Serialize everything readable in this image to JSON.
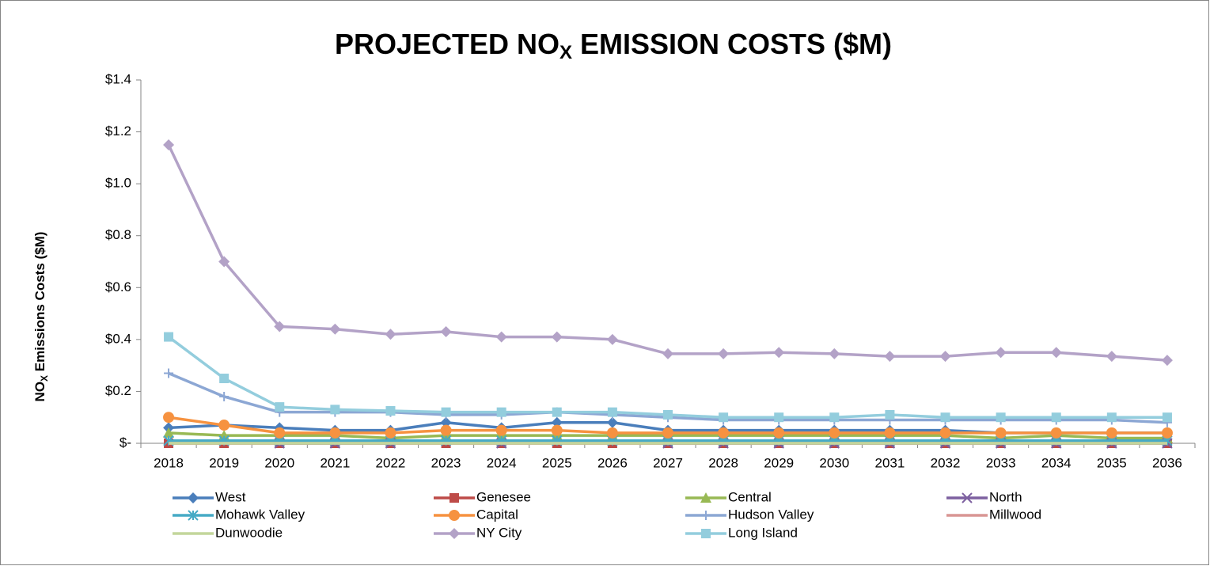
{
  "chart_data": {
    "type": "line",
    "title": {
      "main": "PROJECTED NO",
      "sub": "X",
      "rest": " EMISSION COSTS ($M)"
    },
    "y_label": {
      "main": "NO",
      "sub": "X",
      "rest": " Emissions  Costs  ($M)"
    },
    "categories": [
      "2018",
      "2019",
      "2020",
      "2021",
      "2022",
      "2023",
      "2024",
      "2025",
      "2026",
      "2027",
      "2028",
      "2029",
      "2030",
      "2031",
      "2032",
      "2033",
      "2034",
      "2035",
      "2036"
    ],
    "ylim": [
      0,
      1.4
    ],
    "yticks": [
      {
        "value": 0,
        "label": "$-"
      },
      {
        "value": 0.2,
        "label": "$0.2"
      },
      {
        "value": 0.4,
        "label": "$0.4"
      },
      {
        "value": 0.6,
        "label": "$0.6"
      },
      {
        "value": 0.8,
        "label": "$0.8"
      },
      {
        "value": 1.0,
        "label": "$1.0"
      },
      {
        "value": 1.2,
        "label": "$1.2"
      },
      {
        "value": 1.4,
        "label": "$1.4"
      }
    ],
    "grid": false,
    "legend": "bottom",
    "series": [
      {
        "name": "West",
        "color": "#4a7ebb",
        "marker": "diamond",
        "values": [
          0.06,
          0.07,
          0.06,
          0.05,
          0.05,
          0.08,
          0.06,
          0.08,
          0.08,
          0.05,
          0.05,
          0.05,
          0.05,
          0.05,
          0.05,
          0.04,
          0.04,
          0.04,
          0.04
        ]
      },
      {
        "name": "Genesee",
        "color": "#be4b48",
        "marker": "square",
        "values": [
          0,
          0,
          0,
          0,
          0,
          0,
          0,
          0,
          0,
          0,
          0,
          0,
          0,
          0,
          0,
          0,
          0,
          0,
          0
        ]
      },
      {
        "name": "Central",
        "color": "#98b954",
        "marker": "triangle",
        "values": [
          0.04,
          0.03,
          0.03,
          0.03,
          0.02,
          0.03,
          0.03,
          0.03,
          0.03,
          0.03,
          0.03,
          0.03,
          0.03,
          0.03,
          0.03,
          0.02,
          0.03,
          0.02,
          0.02
        ]
      },
      {
        "name": "North",
        "color": "#7d60a0",
        "marker": "x",
        "values": [
          0.01,
          0.01,
          0,
          0,
          0,
          0.01,
          0,
          0.01,
          0.01,
          0,
          0,
          0,
          0,
          0,
          0,
          0,
          0,
          0,
          0
        ]
      },
      {
        "name": "Mohawk Valley",
        "color": "#46aac5",
        "marker": "asterisk",
        "values": [
          0.01,
          0.01,
          0.01,
          0.01,
          0.01,
          0.01,
          0.01,
          0.01,
          0.01,
          0.01,
          0.01,
          0.01,
          0.01,
          0.01,
          0.01,
          0.01,
          0.01,
          0.01,
          0.01
        ]
      },
      {
        "name": "Capital",
        "color": "#f69240",
        "marker": "circle",
        "values": [
          0.1,
          0.07,
          0.04,
          0.04,
          0.04,
          0.05,
          0.05,
          0.05,
          0.04,
          0.04,
          0.04,
          0.04,
          0.04,
          0.04,
          0.04,
          0.04,
          0.04,
          0.04,
          0.04
        ]
      },
      {
        "name": "Hudson Valley",
        "color": "#8ca7d4",
        "marker": "plus",
        "values": [
          0.27,
          0.18,
          0.12,
          0.12,
          0.12,
          0.11,
          0.11,
          0.12,
          0.11,
          0.1,
          0.09,
          0.09,
          0.09,
          0.09,
          0.09,
          0.09,
          0.09,
          0.09,
          0.08
        ]
      },
      {
        "name": "Millwood",
        "color": "#d99694",
        "marker": "none",
        "values": [
          0,
          0,
          0,
          0,
          0,
          0,
          0,
          0,
          0,
          0,
          0,
          0,
          0,
          0,
          0,
          0,
          0,
          0,
          0
        ]
      },
      {
        "name": "Dunwoodie",
        "color": "#c3d69b",
        "marker": "none",
        "values": [
          0,
          0,
          0,
          0,
          0,
          0,
          0,
          0,
          0,
          0,
          0,
          0,
          0,
          0,
          0,
          0,
          0,
          0,
          0
        ]
      },
      {
        "name": "NY City",
        "color": "#b3a2c7",
        "marker": "diamond",
        "values": [
          1.15,
          0.7,
          0.45,
          0.44,
          0.42,
          0.43,
          0.41,
          0.41,
          0.4,
          0.345,
          0.345,
          0.35,
          0.345,
          0.335,
          0.335,
          0.35,
          0.35,
          0.335,
          0.32
        ]
      },
      {
        "name": "Long Island",
        "color": "#93cddd",
        "marker": "square",
        "values": [
          0.41,
          0.25,
          0.14,
          0.13,
          0.125,
          0.12,
          0.12,
          0.12,
          0.12,
          0.11,
          0.1,
          0.1,
          0.1,
          0.11,
          0.1,
          0.1,
          0.1,
          0.1,
          0.1
        ]
      }
    ]
  }
}
